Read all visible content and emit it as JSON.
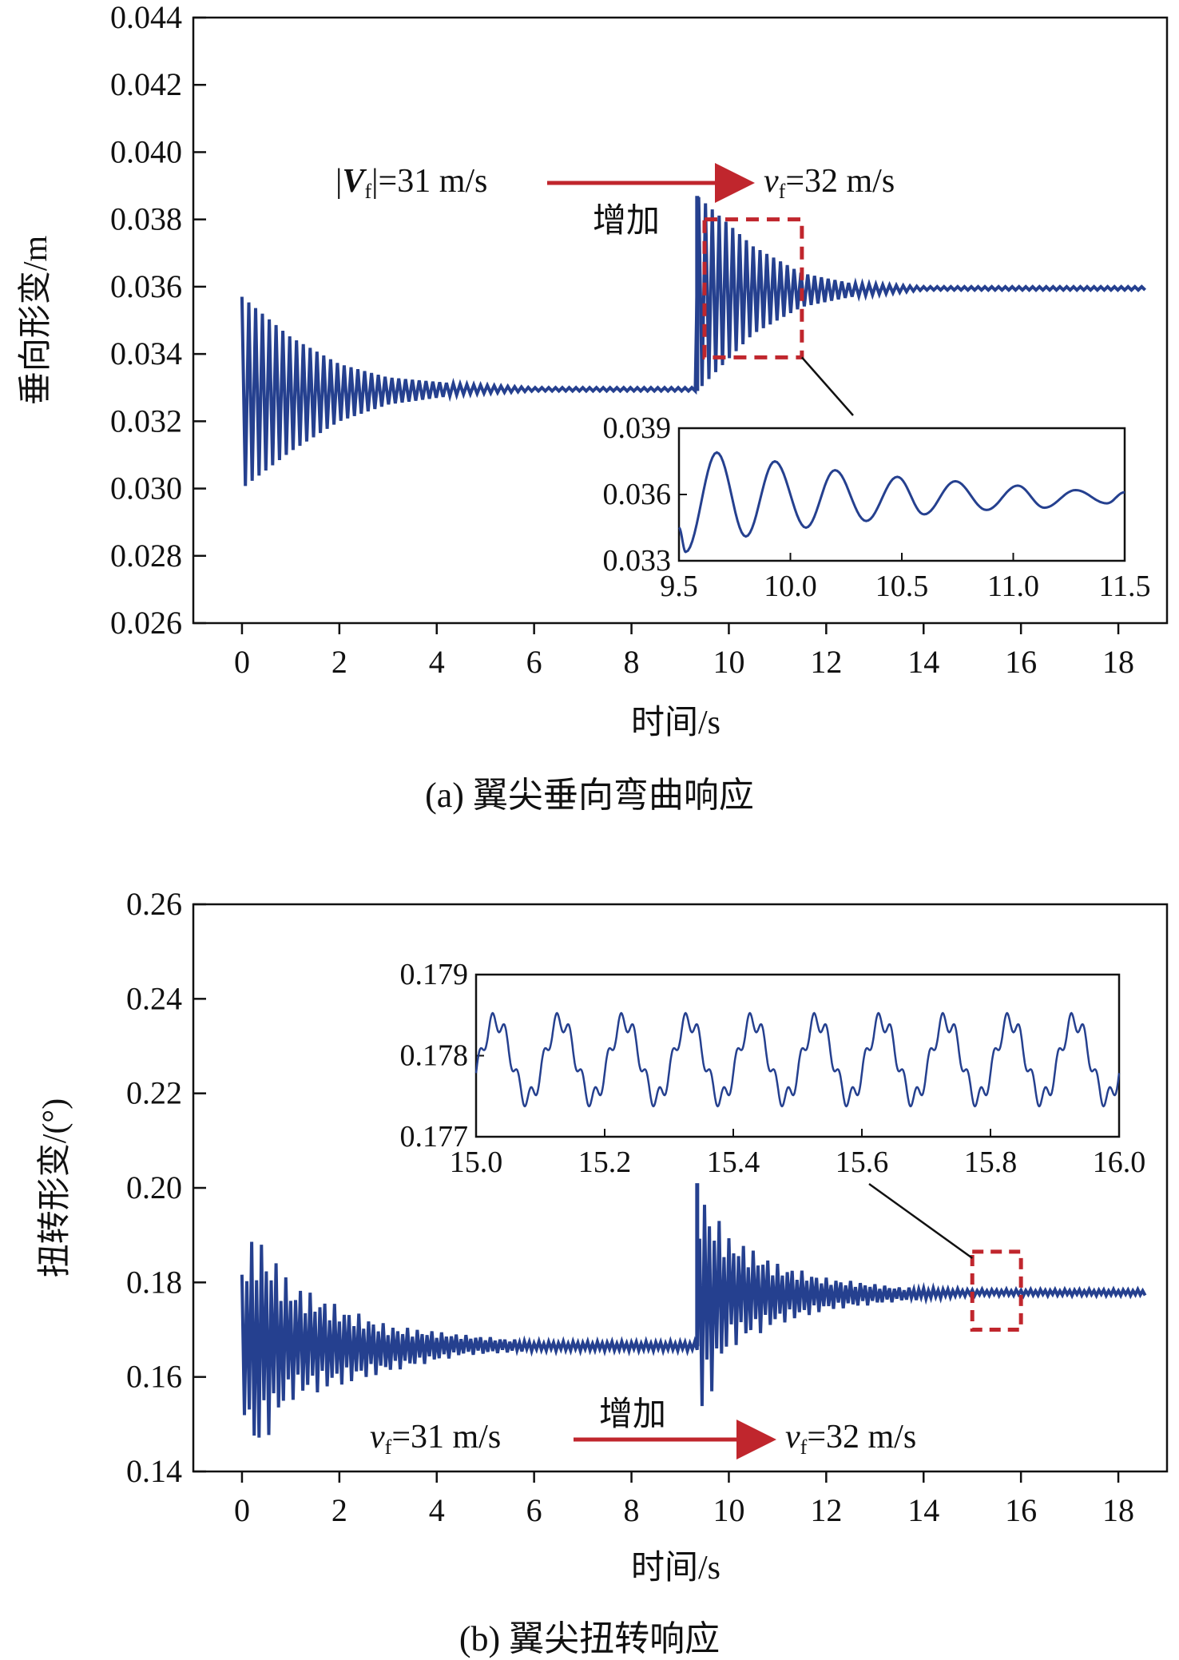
{
  "colors": {
    "series": "#25408f",
    "highlight": "#c0262d",
    "axis": "#111111",
    "background": "#ffffff"
  },
  "chart_data": [
    {
      "type": "line",
      "caption": "(a) 翼尖垂向弯曲响应",
      "xlabel": "时间/s",
      "ylabel": "垂向形变/m",
      "xlim": [
        -1,
        19
      ],
      "ylim": [
        0.026,
        0.044
      ],
      "xticks": [
        "0",
        "2",
        "4",
        "6",
        "8",
        "10",
        "12",
        "14",
        "16",
        "18"
      ],
      "yticks": [
        "0.026",
        "0.028",
        "0.030",
        "0.032",
        "0.034",
        "0.036",
        "0.038",
        "0.040",
        "0.042",
        "0.044"
      ],
      "grid": false,
      "series": [
        {
          "name": "",
          "x_end": 18.6,
          "jump_time": 9.35,
          "baseline_before": 0.0329,
          "baseline_after": 0.0359,
          "peak_envelope_before": [
            [
              0.0,
              0.0357
            ],
            [
              1.0,
              0.0345
            ],
            [
              2.0,
              0.0337
            ],
            [
              3.0,
              0.0333
            ],
            [
              4.5,
              0.0331
            ],
            [
              6.0,
              0.033
            ]
          ],
          "trough_envelope_before": [
            [
              0.0,
              0.03
            ],
            [
              1.0,
              0.0311
            ],
            [
              2.0,
              0.032
            ],
            [
              3.0,
              0.0325
            ],
            [
              4.5,
              0.0328
            ],
            [
              6.0,
              0.0329
            ]
          ],
          "peak_envelope_after": [
            [
              9.35,
              0.0387
            ],
            [
              10.5,
              0.0372
            ],
            [
              11.5,
              0.0364
            ],
            [
              12.5,
              0.0361
            ],
            [
              14.0,
              0.036
            ]
          ],
          "trough_envelope_after": [
            [
              9.35,
              0.0329
            ],
            [
              10.5,
              0.0346
            ],
            [
              11.5,
              0.0354
            ],
            [
              12.5,
              0.0357
            ],
            [
              14.0,
              0.0359
            ]
          ]
        }
      ],
      "annotations": {
        "left_label_prefix": "|",
        "left_label_var": "V",
        "left_label_sub": "f",
        "left_label_rest": "|=31 m/s",
        "right_label_var": "v",
        "right_label_sub": "f",
        "right_label_rest": "=32 m/s",
        "increase_label": "增加",
        "zoom_box_x": [
          9.5,
          11.5
        ],
        "zoom_box_y": [
          0.0339,
          0.038
        ]
      },
      "inset": {
        "type": "line",
        "xlim": [
          9.5,
          11.5
        ],
        "ylim": [
          0.033,
          0.039
        ],
        "xticks": [
          "9.5",
          "10.0",
          "10.5",
          "11.0",
          "11.5"
        ],
        "yticks": [
          "0.033",
          "0.036",
          "0.039"
        ],
        "peaks": [
          [
            9.67,
            0.0379
          ],
          [
            9.93,
            0.0375
          ],
          [
            10.2,
            0.0371
          ],
          [
            10.48,
            0.0368
          ],
          [
            10.74,
            0.0366
          ],
          [
            11.02,
            0.0364
          ],
          [
            11.28,
            0.0362
          ]
        ],
        "troughs": [
          [
            9.53,
            0.0334
          ],
          [
            9.8,
            0.0341
          ],
          [
            10.07,
            0.0345
          ],
          [
            10.34,
            0.0348
          ],
          [
            10.6,
            0.0351
          ],
          [
            10.88,
            0.0353
          ],
          [
            11.14,
            0.0354
          ],
          [
            11.42,
            0.0356
          ]
        ],
        "start": [
          9.5,
          0.0345
        ],
        "end": [
          11.5,
          0.0361
        ]
      }
    },
    {
      "type": "line",
      "caption": "(b) 翼尖扭转响应",
      "xlabel": "时间/s",
      "ylabel": "扭转形变/(°)",
      "xlim": [
        -1,
        19
      ],
      "ylim": [
        0.14,
        0.26
      ],
      "xticks": [
        "0",
        "2",
        "4",
        "6",
        "8",
        "10",
        "12",
        "14",
        "16",
        "18"
      ],
      "yticks": [
        "0.14",
        "0.16",
        "0.18",
        "0.20",
        "0.22",
        "0.24",
        "0.26"
      ],
      "grid": false,
      "series": [
        {
          "name": "",
          "x_end": 18.6,
          "jump_time": 9.35,
          "baseline_before": 0.1665,
          "baseline_after": 0.1777,
          "peak_envelope_before": [
            [
              0.0,
              0.185
            ],
            [
              0.3,
              0.191
            ],
            [
              1.0,
              0.18
            ],
            [
              2.0,
              0.175
            ],
            [
              3.0,
              0.171
            ],
            [
              4.5,
              0.169
            ],
            [
              6.0,
              0.1675
            ]
          ],
          "trough_envelope_before": [
            [
              0.0,
              0.155
            ],
            [
              0.2,
              0.142
            ],
            [
              1.0,
              0.155
            ],
            [
              2.0,
              0.158
            ],
            [
              3.0,
              0.161
            ],
            [
              4.5,
              0.1645
            ],
            [
              6.0,
              0.1655
            ]
          ],
          "peak_envelope_after": [
            [
              9.35,
              0.201
            ],
            [
              10.0,
              0.19
            ],
            [
              11.0,
              0.184
            ],
            [
              12.0,
              0.181
            ],
            [
              13.5,
              0.179
            ],
            [
              15.0,
              0.1785
            ]
          ],
          "trough_envelope_after": [
            [
              9.35,
              0.149
            ],
            [
              10.0,
              0.166
            ],
            [
              11.0,
              0.171
            ],
            [
              12.0,
              0.174
            ],
            [
              13.5,
              0.176
            ],
            [
              15.0,
              0.1772
            ]
          ]
        }
      ],
      "annotations": {
        "left_label_var": "v",
        "left_label_sub": "f",
        "left_label_rest": "=31 m/s",
        "right_label_var": "v",
        "right_label_sub": "f",
        "right_label_rest": "=32 m/s",
        "increase_label": "增加",
        "zoom_box_x": [
          15.0,
          16.0
        ],
        "zoom_box_y": [
          0.17,
          0.1865
        ]
      },
      "inset": {
        "type": "line",
        "xlim": [
          15.0,
          16.0
        ],
        "ylim": [
          0.177,
          0.179
        ],
        "xticks": [
          "15.0",
          "15.2",
          "15.4",
          "15.6",
          "15.8",
          "16.0"
        ],
        "yticks": [
          "0.177",
          "0.178",
          "0.179"
        ],
        "main_period": 0.1,
        "main_center": 0.17795,
        "main_amplitude": 0.00048,
        "ripple_period": 0.02,
        "ripple_amplitude": 0.00012
      }
    }
  ]
}
